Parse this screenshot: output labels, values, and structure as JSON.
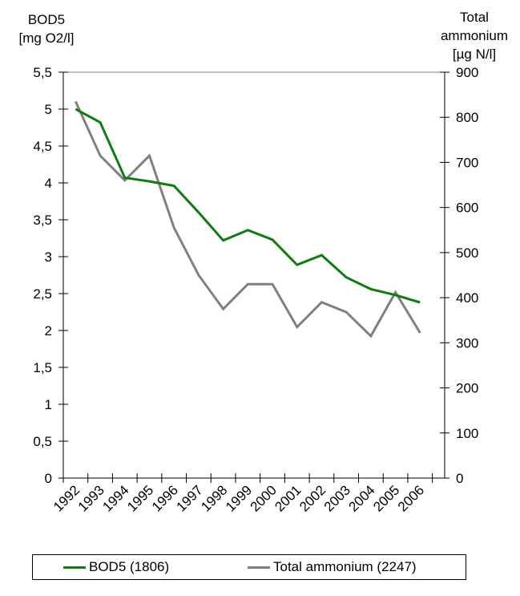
{
  "chart_data": {
    "type": "line",
    "left_axis_title": [
      "BOD5",
      "[mg O2/l]"
    ],
    "right_axis_title": [
      "Total",
      "ammonium",
      "[µg N/l]"
    ],
    "categories": [
      "1992",
      "1993",
      "1994",
      "1995",
      "1996",
      "1997",
      "1998",
      "1999",
      "2000",
      "2001",
      "2002",
      "2003",
      "2004",
      "2005",
      "2006"
    ],
    "left_ylim": [
      0,
      5.5
    ],
    "left_ticks": [
      "0",
      "0,5",
      "1",
      "1,5",
      "2",
      "2,5",
      "3",
      "3,5",
      "4",
      "4,5",
      "5",
      "5,5"
    ],
    "right_ylim": [
      0,
      900
    ],
    "right_ticks": [
      "0",
      "100",
      "200",
      "300",
      "400",
      "500",
      "600",
      "700",
      "800",
      "900"
    ],
    "series": [
      {
        "name": "BOD5 (1806)",
        "axis": "left",
        "color": "#107c10",
        "values": [
          5.0,
          4.82,
          4.07,
          4.02,
          3.96,
          3.6,
          3.22,
          3.36,
          3.23,
          2.89,
          3.02,
          2.72,
          2.56,
          2.48,
          2.38
        ]
      },
      {
        "name": "Total ammonium (2247)",
        "axis": "right",
        "color": "#808080",
        "values": [
          835,
          715,
          660,
          715,
          555,
          450,
          375,
          430,
          430,
          335,
          390,
          368,
          315,
          412,
          322
        ]
      }
    ],
    "grid": false,
    "legend_position": "bottom"
  }
}
